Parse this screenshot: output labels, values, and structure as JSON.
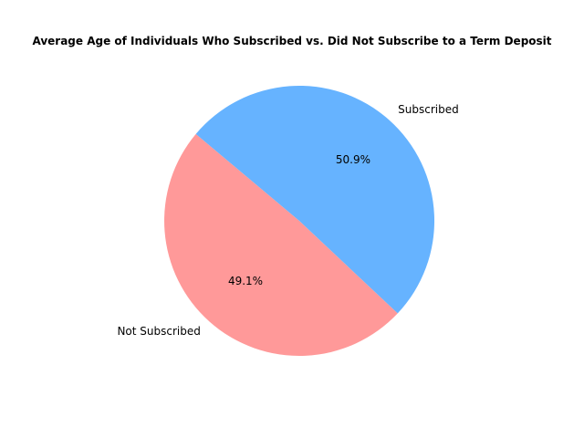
{
  "chart_data": {
    "type": "pie",
    "title": "Average Age of Individuals Who Subscribed vs. Did Not Subscribe to a Term Deposit",
    "categories": [
      "Not Subscribed",
      "Subscribed"
    ],
    "values": [
      49.1,
      50.9
    ],
    "percent_labels": [
      "49.1%",
      "50.9%"
    ],
    "colors": [
      "#ff9999",
      "#66b3ff"
    ],
    "start_angle_deg": 140,
    "legend": "none"
  }
}
